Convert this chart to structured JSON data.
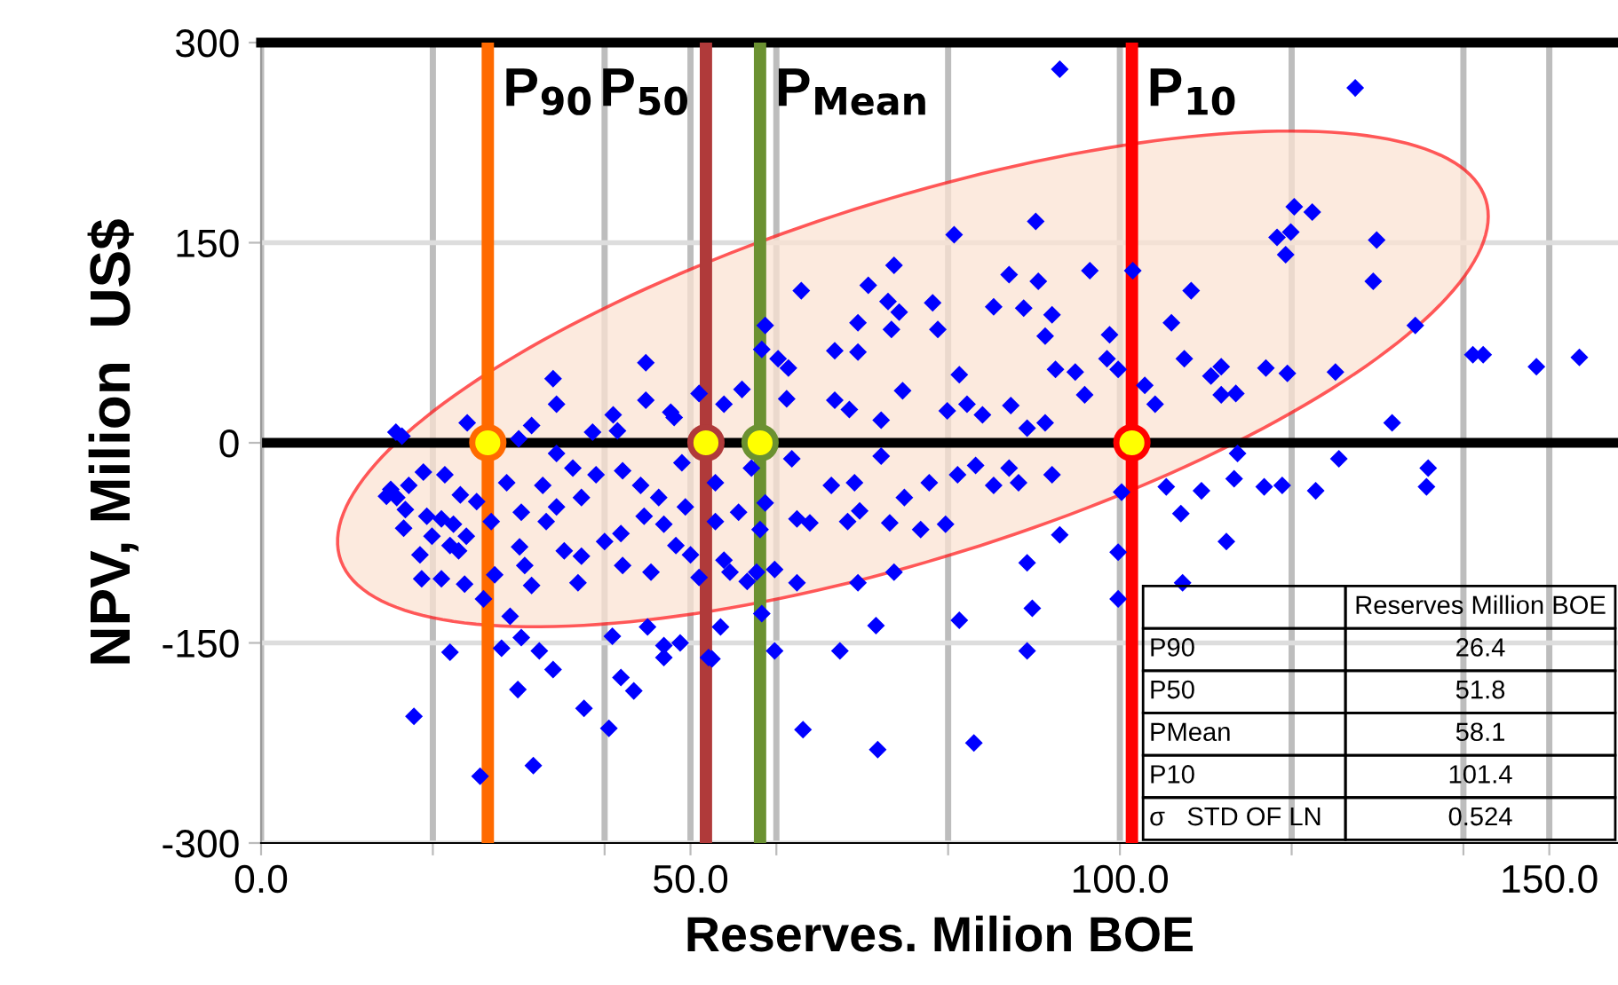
{
  "chart_data": {
    "type": "scatter",
    "xlabel": "Reserves. Milion BOE",
    "ylabel": "NPV, Milion  US$",
    "xlim": [
      0,
      158
    ],
    "ylim": [
      -300,
      300
    ],
    "xticks": [
      {
        "value": 0,
        "label": "0.0"
      },
      {
        "value": 20,
        "label": null
      },
      {
        "value": 40,
        "label": null
      },
      {
        "value": 50,
        "label": "50.0"
      },
      {
        "value": 60,
        "label": null
      },
      {
        "value": 80,
        "label": null
      },
      {
        "value": 100,
        "label": "100.0"
      },
      {
        "value": 120,
        "label": null
      },
      {
        "value": 140,
        "label": null
      },
      {
        "value": 150,
        "label": "150.0"
      }
    ],
    "yticks": [
      -300,
      -150,
      0,
      150,
      300
    ],
    "grid": true,
    "marker": "diamond",
    "series": [
      {
        "color": "#0000ff",
        "x": [
          15.7,
          24,
          31.5,
          34,
          34.4,
          41,
          44.8,
          44.8,
          47.7,
          48.1,
          51,
          38.6,
          41.5,
          30,
          93,
          80.7,
          90.2,
          101.5,
          73.7,
          62.9,
          70.7,
          87.1,
          90.5,
          96.5,
          58.7,
          58.3,
          60.2,
          61.4,
          66.8,
          69.5,
          69.5,
          73.4,
          73,
          74.3,
          78.2,
          78.8,
          85.3,
          88.8,
          92.1,
          91.3,
          92.5,
          94.8,
          98.8,
          98.5,
          99.8,
          95.9,
          81.3,
          74.7,
          53.9,
          56,
          61.2,
          66.8,
          68.5,
          72.2,
          79.9,
          82.2,
          84,
          87.3,
          89.2,
          91.3,
          102.9,
          104.1,
          127.4,
          120.3,
          122.4,
          118.3,
          119.9,
          129.9,
          119.3,
          129.5,
          108.3,
          106,
          134.4,
          107.5,
          111.8,
          110.6,
          117,
          119.5,
          125.1,
          111.8,
          113.5,
          141.1,
          142.3,
          148.5,
          153.5,
          131.7,
          125.5,
          135.9,
          135.7,
          116.8,
          118.9,
          122.8,
          113.3,
          109.5,
          105.4,
          107.1,
          112.4,
          107.3,
          113.7,
          93,
          89.2,
          89.8,
          89.2,
          81.3,
          83,
          71.8,
          63.1,
          67.4,
          59.8,
          71.6,
          73.7,
          69.5,
          62.4,
          53.5,
          52.5,
          58.3,
          99.8,
          99.8,
          100.2,
          76.8,
          79.7,
          73.2,
          68.3,
          69.7,
          63.9,
          66.4,
          69.1,
          74.9,
          77.8,
          81.1,
          85.3,
          88.2,
          92.1,
          83.2,
          87.1,
          72.2,
          61.8,
          59.8,
          57.7,
          56.6,
          54.6,
          53.9,
          58.1,
          58.7,
          55.6,
          52.9,
          52.9,
          57.1,
          62.4,
          17.8,
          25.5,
          31.7,
          22,
          28,
          30.3,
          32.4,
          34,
          29.9,
          37.6,
          40.5,
          41.9,
          43.4,
          40.9,
          45,
          46.9,
          48.8,
          46.9,
          29,
          25.9,
          18.7,
          21,
          23.7,
          18.5,
          16.6,
          15.1,
          15.8,
          17.2,
          18.9,
          16.8,
          19.3,
          21,
          19.9,
          22,
          23,
          23.9,
          23.2,
          25.1,
          26.8,
          27.2,
          28.6,
          30.3,
          30.1,
          30.7,
          31.5,
          32.8,
          33.2,
          34.4,
          35.3,
          36.3,
          36.9,
          37.3,
          37.3,
          39,
          40,
          42.1,
          41.9,
          42.1,
          44.2,
          44.6,
          45.4,
          46.3,
          46.9,
          48.3,
          49,
          50,
          49.4,
          51,
          52.1,
          34.4,
          21.4,
          22.4,
          16.4,
          14.6
        ],
        "values": [
          8,
          15,
          13,
          48,
          29,
          21,
          60,
          32,
          23,
          19,
          37,
          8,
          9,
          3,
          280,
          156,
          166,
          129,
          133,
          114,
          118,
          126,
          121,
          129,
          88,
          70,
          63,
          56,
          69,
          68,
          90,
          85,
          106,
          98,
          105,
          85,
          102,
          101,
          96,
          80,
          55,
          53,
          81,
          63,
          55,
          36,
          51,
          39,
          29,
          40,
          33,
          32,
          25,
          17,
          24,
          29,
          21,
          28,
          11,
          15,
          43,
          29,
          266,
          177,
          173,
          154,
          158,
          152,
          141,
          121,
          114,
          90,
          88,
          63,
          57,
          50,
          56,
          52,
          53,
          36,
          37,
          66,
          66,
          57,
          64,
          15,
          -12,
          -19,
          -33,
          -33,
          -32,
          -36,
          -27,
          -36,
          -33,
          -53,
          -74,
          -105,
          -8,
          -69,
          -90,
          -124,
          -156,
          -133,
          -225,
          -230,
          -215,
          -156,
          -156,
          -137,
          -97,
          -105,
          -105,
          -138,
          -162,
          -128,
          -82,
          -117,
          -37,
          -65,
          -61,
          -60,
          -59,
          -51,
          -60,
          -32,
          -30,
          -41,
          -30,
          -24,
          -32,
          -30,
          -24,
          -17,
          -19,
          -10,
          -12,
          -95,
          -97,
          -104,
          -97,
          -88,
          -65,
          -45,
          -52,
          -59,
          -30,
          -19,
          -57,
          -205,
          -250,
          -242,
          -157,
          -154,
          -146,
          -156,
          -170,
          -185,
          -199,
          -214,
          -176,
          -186,
          -145,
          -138,
          -152,
          -150,
          -161,
          -130,
          -117,
          -102,
          -102,
          -106,
          -84,
          -64,
          -35,
          -41,
          -32,
          -22,
          -50,
          -55,
          -57,
          -70,
          -77,
          -81,
          -70,
          -39,
          -44,
          -59,
          -99,
          -30,
          -52,
          -78,
          -92,
          -107,
          -32,
          -59,
          -48,
          -81,
          -19,
          -105,
          -41,
          -85,
          -24,
          -74,
          -21,
          -68,
          -92,
          -32,
          -55,
          -97,
          -41,
          -61,
          -77,
          -15,
          -84,
          -48,
          -101,
          -161,
          -8,
          -24,
          -61,
          5,
          -40
        ]
      },
      {
        "color": "#ffff00",
        "x": [
          26.4,
          51.8,
          58.1,
          101.4
        ],
        "values": [
          0,
          0,
          0,
          0
        ],
        "marker": "circle"
      }
    ],
    "ref_lines": [
      {
        "axis": "x",
        "value": 26.4,
        "label": "P$_{90}$",
        "color": "#ff6a00"
      },
      {
        "axis": "x",
        "value": 51.8,
        "label": "P$_{50}$",
        "color": "#b03a3a"
      },
      {
        "axis": "x",
        "value": 58.1,
        "label": "P$_{Mean}$",
        "color": "#6b9131"
      },
      {
        "axis": "x",
        "value": 101.4,
        "label": "P$_{10}$",
        "color": "#ff0000"
      },
      {
        "axis": "y",
        "value": 0,
        "label": null,
        "color": "#000000"
      }
    ],
    "annotations": [
      "Reserves Million BOE",
      "P90",
      "26.4",
      "P50",
      "51.8",
      "PMean",
      "58.1",
      "P10",
      "101.4",
      "σ   STD OF LN",
      "0.524"
    ]
  }
}
